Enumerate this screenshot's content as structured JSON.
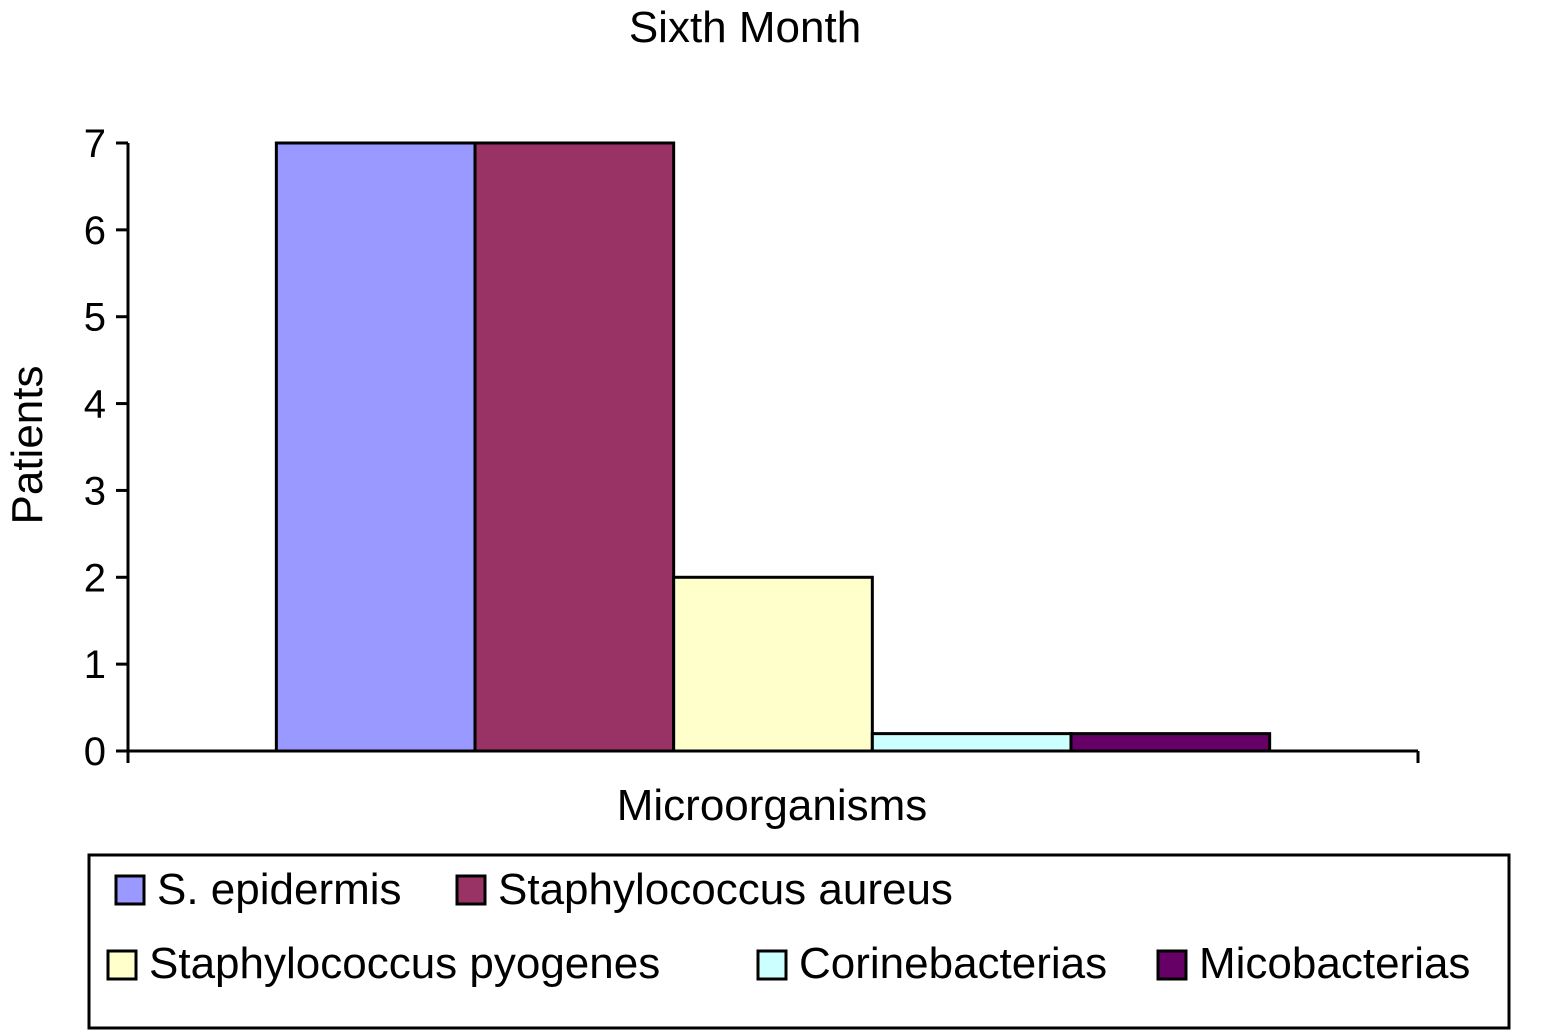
{
  "chart_data": {
    "type": "bar",
    "title": "Sixth Month",
    "xlabel": "Microorganisms",
    "ylabel": "Patients",
    "ylim": [
      0,
      7
    ],
    "yticks": [
      0,
      1,
      2,
      3,
      4,
      5,
      6,
      7
    ],
    "categories": [
      ""
    ],
    "grid": false,
    "legend_position": "bottom",
    "series": [
      {
        "name": "S. epidermis",
        "values": [
          7
        ],
        "color": "#9999FF"
      },
      {
        "name": "Staphylococcus aureus",
        "values": [
          7
        ],
        "color": "#993366"
      },
      {
        "name": "Staphylococcus pyogenes",
        "values": [
          2
        ],
        "color": "#FFFFCC"
      },
      {
        "name": "Corinebacterias",
        "values": [
          0.2
        ],
        "color": "#CCFFFF"
      },
      {
        "name": "Micobacterias",
        "values": [
          0.2
        ],
        "color": "#660066"
      }
    ]
  }
}
